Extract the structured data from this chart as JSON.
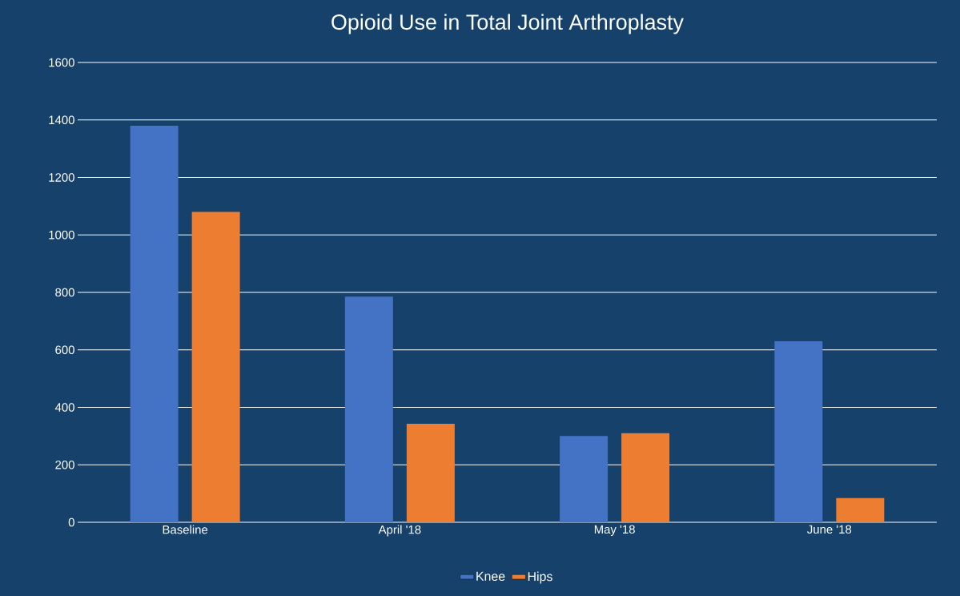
{
  "chart_data": {
    "type": "bar",
    "title": "Opioid Use in Total Joint Arthroplasty",
    "categories": [
      "Baseline",
      "April '18",
      "May '18",
      "June '18"
    ],
    "series": [
      {
        "name": "Knee",
        "color": "#4472c4",
        "values": [
          1380,
          785,
          300,
          630
        ]
      },
      {
        "name": "Hips",
        "color": "#ed7d31",
        "values": [
          1080,
          343,
          310,
          84
        ]
      }
    ],
    "ylim": [
      0,
      1600
    ],
    "yticks": [
      0,
      200,
      400,
      600,
      800,
      1000,
      1200,
      1400,
      1600
    ],
    "grid": "y",
    "legend": "bottom"
  }
}
